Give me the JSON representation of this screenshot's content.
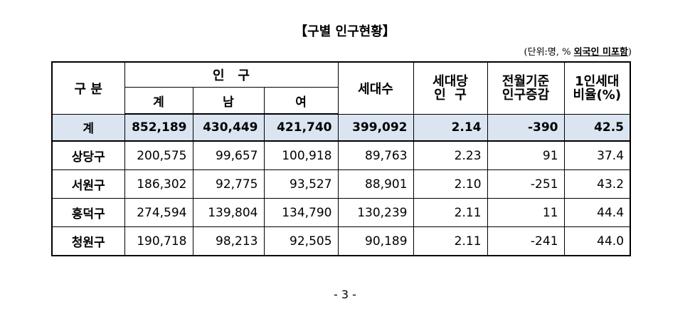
{
  "title": "【구별  인구현황】",
  "unit_prefix": "(단위:명, % ",
  "unit_emph": "외국인 미포함",
  "unit_suffix": ")",
  "headers": {
    "gubun": "구 분",
    "ingu": "인   구",
    "gye": "계",
    "nam": "남",
    "yeo": "여",
    "sedaesu": "세대수",
    "sedaedang_1": "세대당",
    "sedaedang_2": "인  구",
    "jeonwol_1": "전월기준",
    "jeonwol_2": "인구증감",
    "oneperson_1": "1인세대",
    "oneperson_2": "비율(%)"
  },
  "total": {
    "name": "계",
    "gye": "852,189",
    "nam": "430,449",
    "yeo": "421,740",
    "sedaesu": "399,092",
    "per": "2.14",
    "change": "-390",
    "ratio": "42.5"
  },
  "rows": [
    {
      "name": "상당구",
      "gye": "200,575",
      "nam": "99,657",
      "yeo": "100,918",
      "sedaesu": "89,763",
      "per": "2.23",
      "change": "91",
      "ratio": "37.4"
    },
    {
      "name": "서원구",
      "gye": "186,302",
      "nam": "92,775",
      "yeo": "93,527",
      "sedaesu": "88,901",
      "per": "2.10",
      "change": "-251",
      "ratio": "43.2"
    },
    {
      "name": "흥덕구",
      "gye": "274,594",
      "nam": "139,804",
      "yeo": "134,790",
      "sedaesu": "130,239",
      "per": "2.11",
      "change": "11",
      "ratio": "44.4"
    },
    {
      "name": "청원구",
      "gye": "190,718",
      "nam": "98,213",
      "yeo": "92,505",
      "sedaesu": "90,189",
      "per": "2.11",
      "change": "-241",
      "ratio": "44.0"
    }
  ],
  "colors": {
    "total_row_bg": "#dbe5f1"
  },
  "page_number": "- 3 -"
}
